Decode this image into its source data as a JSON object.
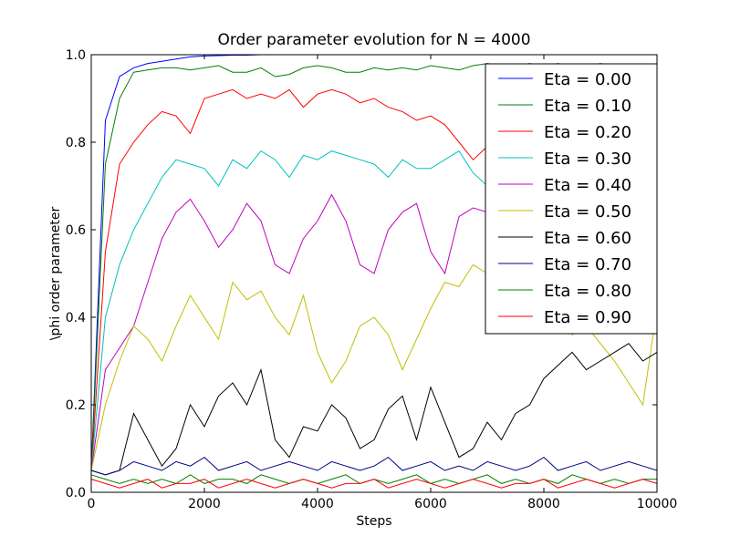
{
  "chart_data": {
    "type": "line",
    "title": "Order parameter evolution for N = 4000",
    "xlabel": "Steps",
    "ylabel": "\\phi order parameter",
    "xlim": [
      0,
      10000
    ],
    "ylim": [
      0.0,
      1.0
    ],
    "xticks": [
      "0",
      "2000",
      "4000",
      "6000",
      "8000",
      "10000"
    ],
    "yticks": [
      "0.0",
      "0.2",
      "0.4",
      "0.6",
      "0.8",
      "1.0"
    ],
    "grid": false,
    "legend_position": "top-right",
    "x": [
      0,
      250,
      500,
      750,
      1000,
      1250,
      1500,
      1750,
      2000,
      2250,
      2500,
      2750,
      3000,
      3250,
      3500,
      3750,
      4000,
      4250,
      4500,
      4750,
      5000,
      5250,
      5500,
      5750,
      6000,
      6250,
      6500,
      6750,
      7000,
      7250,
      7500,
      7750,
      8000,
      8250,
      8500,
      8750,
      9000,
      9250,
      9500,
      9750,
      10000
    ],
    "series": [
      {
        "name": "Eta = 0.00",
        "color": "#0000ff",
        "values": [
          0.05,
          0.85,
          0.95,
          0.97,
          0.98,
          0.985,
          0.99,
          0.995,
          0.997,
          0.998,
          0.999,
          0.999,
          1.0,
          1.0,
          1.0,
          1.0,
          1.0,
          1.0,
          1.0,
          1.0,
          1.0,
          1.0,
          1.0,
          1.0,
          1.0,
          1.0,
          1.0,
          1.0,
          1.0,
          1.0,
          1.0,
          1.0,
          1.0,
          1.0,
          1.0,
          1.0,
          1.0,
          1.0,
          1.0,
          1.0,
          1.0
        ]
      },
      {
        "name": "Eta = 0.10",
        "color": "#008000",
        "values": [
          0.05,
          0.75,
          0.9,
          0.96,
          0.965,
          0.97,
          0.97,
          0.965,
          0.97,
          0.975,
          0.96,
          0.96,
          0.97,
          0.95,
          0.955,
          0.97,
          0.975,
          0.97,
          0.96,
          0.96,
          0.97,
          0.965,
          0.97,
          0.965,
          0.975,
          0.97,
          0.965,
          0.975,
          0.98,
          0.975,
          0.975,
          0.98,
          0.975,
          0.98,
          0.975,
          0.975,
          0.98,
          0.975,
          0.975,
          0.975,
          0.975
        ]
      },
      {
        "name": "Eta = 0.20",
        "color": "#ff0000",
        "values": [
          0.05,
          0.55,
          0.75,
          0.8,
          0.84,
          0.87,
          0.86,
          0.82,
          0.9,
          0.91,
          0.92,
          0.9,
          0.91,
          0.9,
          0.92,
          0.88,
          0.91,
          0.92,
          0.91,
          0.89,
          0.9,
          0.88,
          0.87,
          0.85,
          0.86,
          0.84,
          0.8,
          0.76,
          0.79,
          0.82,
          0.8,
          0.83,
          0.84,
          0.82,
          0.85,
          0.84,
          0.83,
          0.85,
          0.84,
          0.85,
          0.86
        ]
      },
      {
        "name": "Eta = 0.30",
        "color": "#00bfbf",
        "values": [
          0.05,
          0.4,
          0.52,
          0.6,
          0.66,
          0.72,
          0.76,
          0.75,
          0.74,
          0.7,
          0.76,
          0.74,
          0.78,
          0.76,
          0.72,
          0.77,
          0.76,
          0.78,
          0.77,
          0.76,
          0.75,
          0.72,
          0.76,
          0.74,
          0.74,
          0.76,
          0.78,
          0.73,
          0.7,
          0.73,
          0.74,
          0.72,
          0.74,
          0.73,
          0.76,
          0.74,
          0.72,
          0.73,
          0.71,
          0.74,
          0.81
        ]
      },
      {
        "name": "Eta = 0.40",
        "color": "#bf00bf",
        "values": [
          0.05,
          0.28,
          0.33,
          0.38,
          0.48,
          0.58,
          0.64,
          0.67,
          0.62,
          0.56,
          0.6,
          0.66,
          0.62,
          0.52,
          0.5,
          0.58,
          0.62,
          0.68,
          0.62,
          0.52,
          0.5,
          0.6,
          0.64,
          0.66,
          0.55,
          0.5,
          0.63,
          0.65,
          0.64,
          0.67,
          0.66,
          0.6,
          0.58,
          0.63,
          0.65,
          0.62,
          0.6,
          0.62,
          0.62,
          0.58,
          0.58
        ]
      },
      {
        "name": "Eta = 0.50",
        "color": "#bfbf00",
        "values": [
          0.05,
          0.2,
          0.3,
          0.38,
          0.35,
          0.3,
          0.38,
          0.45,
          0.4,
          0.35,
          0.48,
          0.44,
          0.46,
          0.4,
          0.36,
          0.45,
          0.32,
          0.25,
          0.3,
          0.38,
          0.4,
          0.36,
          0.28,
          0.35,
          0.42,
          0.48,
          0.47,
          0.52,
          0.5,
          0.55,
          0.5,
          0.45,
          0.48,
          0.42,
          0.36,
          0.38,
          0.34,
          0.3,
          0.25,
          0.2,
          0.42
        ]
      },
      {
        "name": "Eta = 0.60",
        "color": "#000000",
        "values": [
          0.05,
          0.04,
          0.05,
          0.18,
          0.12,
          0.06,
          0.1,
          0.2,
          0.15,
          0.22,
          0.25,
          0.2,
          0.28,
          0.12,
          0.08,
          0.15,
          0.14,
          0.2,
          0.17,
          0.1,
          0.12,
          0.19,
          0.22,
          0.12,
          0.24,
          0.16,
          0.08,
          0.1,
          0.16,
          0.12,
          0.18,
          0.2,
          0.26,
          0.29,
          0.32,
          0.28,
          0.3,
          0.32,
          0.34,
          0.3,
          0.32
        ]
      },
      {
        "name": "Eta = 0.70",
        "color": "#000080",
        "values": [
          0.05,
          0.04,
          0.05,
          0.07,
          0.06,
          0.05,
          0.07,
          0.06,
          0.08,
          0.05,
          0.06,
          0.07,
          0.05,
          0.06,
          0.07,
          0.06,
          0.05,
          0.07,
          0.06,
          0.05,
          0.06,
          0.08,
          0.05,
          0.06,
          0.07,
          0.05,
          0.06,
          0.05,
          0.07,
          0.06,
          0.05,
          0.06,
          0.08,
          0.05,
          0.06,
          0.07,
          0.05,
          0.06,
          0.07,
          0.06,
          0.05
        ]
      },
      {
        "name": "Eta = 0.80",
        "color": "#008000",
        "values": [
          0.04,
          0.03,
          0.02,
          0.03,
          0.02,
          0.03,
          0.02,
          0.04,
          0.02,
          0.03,
          0.03,
          0.02,
          0.04,
          0.03,
          0.02,
          0.03,
          0.02,
          0.03,
          0.04,
          0.02,
          0.03,
          0.02,
          0.03,
          0.04,
          0.02,
          0.03,
          0.02,
          0.03,
          0.04,
          0.02,
          0.03,
          0.02,
          0.03,
          0.02,
          0.04,
          0.03,
          0.02,
          0.03,
          0.02,
          0.03,
          0.03
        ]
      },
      {
        "name": "Eta = 0.90",
        "color": "#ff0000",
        "values": [
          0.03,
          0.02,
          0.01,
          0.02,
          0.03,
          0.01,
          0.02,
          0.02,
          0.03,
          0.01,
          0.02,
          0.03,
          0.02,
          0.01,
          0.02,
          0.03,
          0.02,
          0.01,
          0.02,
          0.02,
          0.03,
          0.01,
          0.02,
          0.03,
          0.02,
          0.01,
          0.02,
          0.03,
          0.02,
          0.01,
          0.02,
          0.02,
          0.03,
          0.01,
          0.02,
          0.03,
          0.02,
          0.01,
          0.02,
          0.03,
          0.02
        ]
      }
    ]
  }
}
